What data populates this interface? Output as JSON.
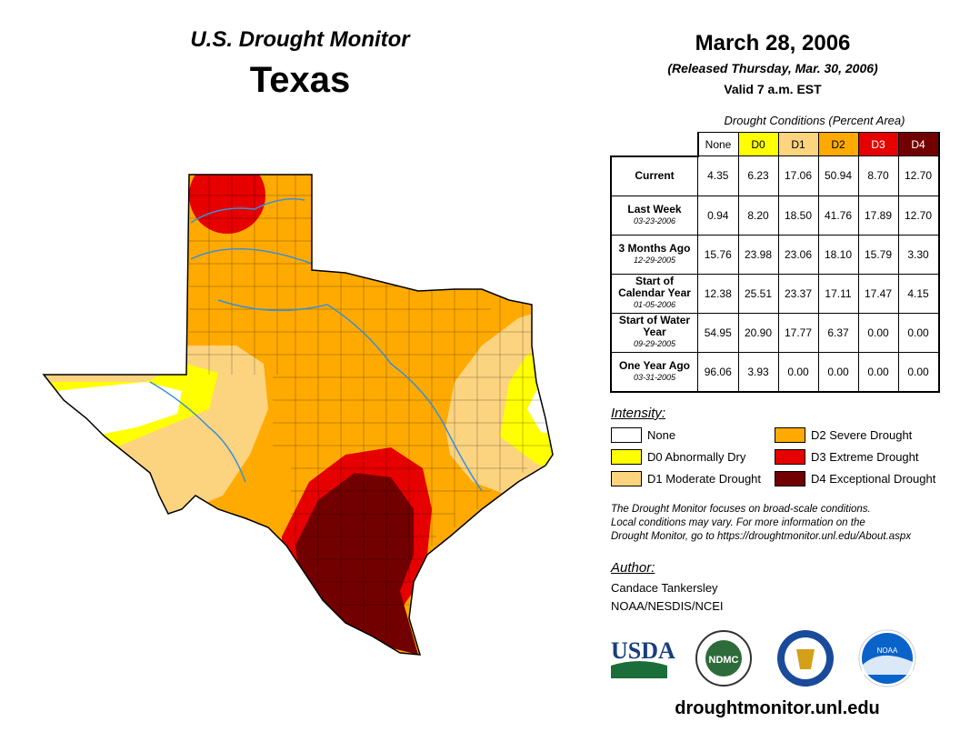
{
  "header": {
    "series_title": "U.S. Drought Monitor",
    "region": "Texas",
    "date": "March 28, 2006",
    "released": "(Released Thursday, Mar. 30, 2006)",
    "valid": "Valid 7 a.m. EST"
  },
  "table": {
    "caption": "Drought Conditions (Percent Area)",
    "columns": [
      "None",
      "D0",
      "D1",
      "D2",
      "D3",
      "D4"
    ],
    "rows": [
      {
        "label": "Current",
        "date": "",
        "values": [
          "4.35",
          "6.23",
          "17.06",
          "50.94",
          "8.70",
          "12.70"
        ]
      },
      {
        "label": "Last Week",
        "date": "03-23-2006",
        "values": [
          "0.94",
          "8.20",
          "18.50",
          "41.76",
          "17.89",
          "12.70"
        ]
      },
      {
        "label": "3 Months Ago",
        "date": "12-29-2005",
        "values": [
          "15.76",
          "23.98",
          "23.06",
          "18.10",
          "15.79",
          "3.30"
        ]
      },
      {
        "label": "Start of Calendar Year",
        "date": "01-05-2006",
        "values": [
          "12.38",
          "25.51",
          "23.37",
          "17.11",
          "17.47",
          "4.15"
        ]
      },
      {
        "label": "Start of Water Year",
        "date": "09-29-2005",
        "values": [
          "54.95",
          "20.90",
          "17.77",
          "6.37",
          "0.00",
          "0.00"
        ]
      },
      {
        "label": "One Year Ago",
        "date": "03-31-2005",
        "values": [
          "96.06",
          "3.93",
          "0.00",
          "0.00",
          "0.00",
          "0.00"
        ]
      }
    ]
  },
  "legend": {
    "title": "Intensity:",
    "items": [
      {
        "label": "None",
        "color": "#ffffff"
      },
      {
        "label": "D0 Abnormally Dry",
        "color": "#ffff00"
      },
      {
        "label": "D1 Moderate Drought",
        "color": "#fcd37f"
      },
      {
        "label": "D2 Severe Drought",
        "color": "#ffaa00"
      },
      {
        "label": "D3 Extreme Drought",
        "color": "#e60000"
      },
      {
        "label": "D4 Exceptional Drought",
        "color": "#730000"
      }
    ]
  },
  "note": [
    "The Drought Monitor focuses on broad-scale conditions.",
    "Local conditions may vary. For more information on the",
    "Drought Monitor, go to https://droughtmonitor.unl.edu/About.aspx"
  ],
  "author": {
    "title": "Author:",
    "name": "Candace Tankersley",
    "org": "NOAA/NESDIS/NCEI"
  },
  "logos": [
    "USDA",
    "NDMC",
    "Department of Commerce",
    "NOAA"
  ],
  "footer": {
    "url": "droughtmonitor.unl.edu"
  }
}
